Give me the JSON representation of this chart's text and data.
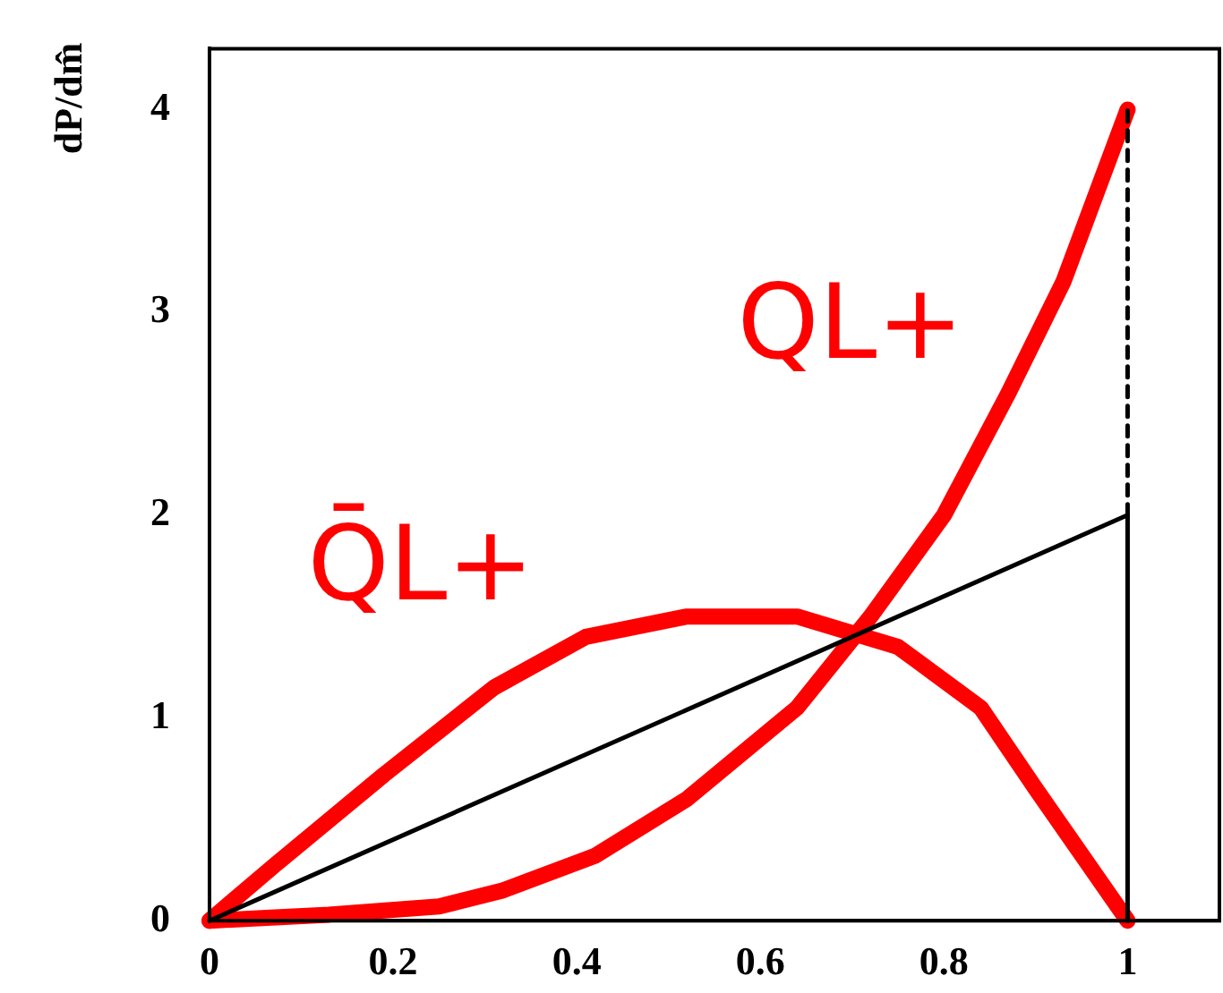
{
  "chart_data": {
    "type": "line",
    "ylabel": "dP/dm̂",
    "xlim": [
      0,
      1.1
    ],
    "ylim": [
      0,
      4.3
    ],
    "xticks": [
      0,
      0.2,
      0.4,
      0.6,
      0.8,
      1
    ],
    "yticks": [
      0,
      1,
      2,
      3,
      4
    ],
    "grid": false,
    "legend": false,
    "marker": "none",
    "series": [
      {
        "color": "#000000",
        "x": [
          0,
          1
        ],
        "values": [
          0,
          2
        ]
      },
      {
        "color": "#000000",
        "x": [
          1,
          1
        ],
        "values": [
          0,
          2
        ]
      },
      {
        "color": "#000000",
        "line_style": "dashed",
        "x": [
          1,
          1
        ],
        "values": [
          2,
          4
        ]
      },
      {
        "name": "QL+",
        "color": "#ff0000",
        "x": [
          0,
          0.13,
          0.25,
          0.32,
          0.42,
          0.52,
          0.64,
          0.72,
          0.8,
          0.87,
          0.93,
          1
        ],
        "values": [
          0,
          0.03,
          0.07,
          0.15,
          0.32,
          0.6,
          1.05,
          1.5,
          2.0,
          2.6,
          3.15,
          4
        ]
      },
      {
        "name": "Q̄L+",
        "color": "#ff0000",
        "x": [
          0,
          0.07,
          0.19,
          0.31,
          0.41,
          0.52,
          0.64,
          0.75,
          0.84,
          0.9,
          1
        ],
        "values": [
          0,
          0.27,
          0.72,
          1.15,
          1.4,
          1.5,
          1.5,
          1.35,
          1.05,
          0.65,
          0
        ]
      }
    ]
  }
}
